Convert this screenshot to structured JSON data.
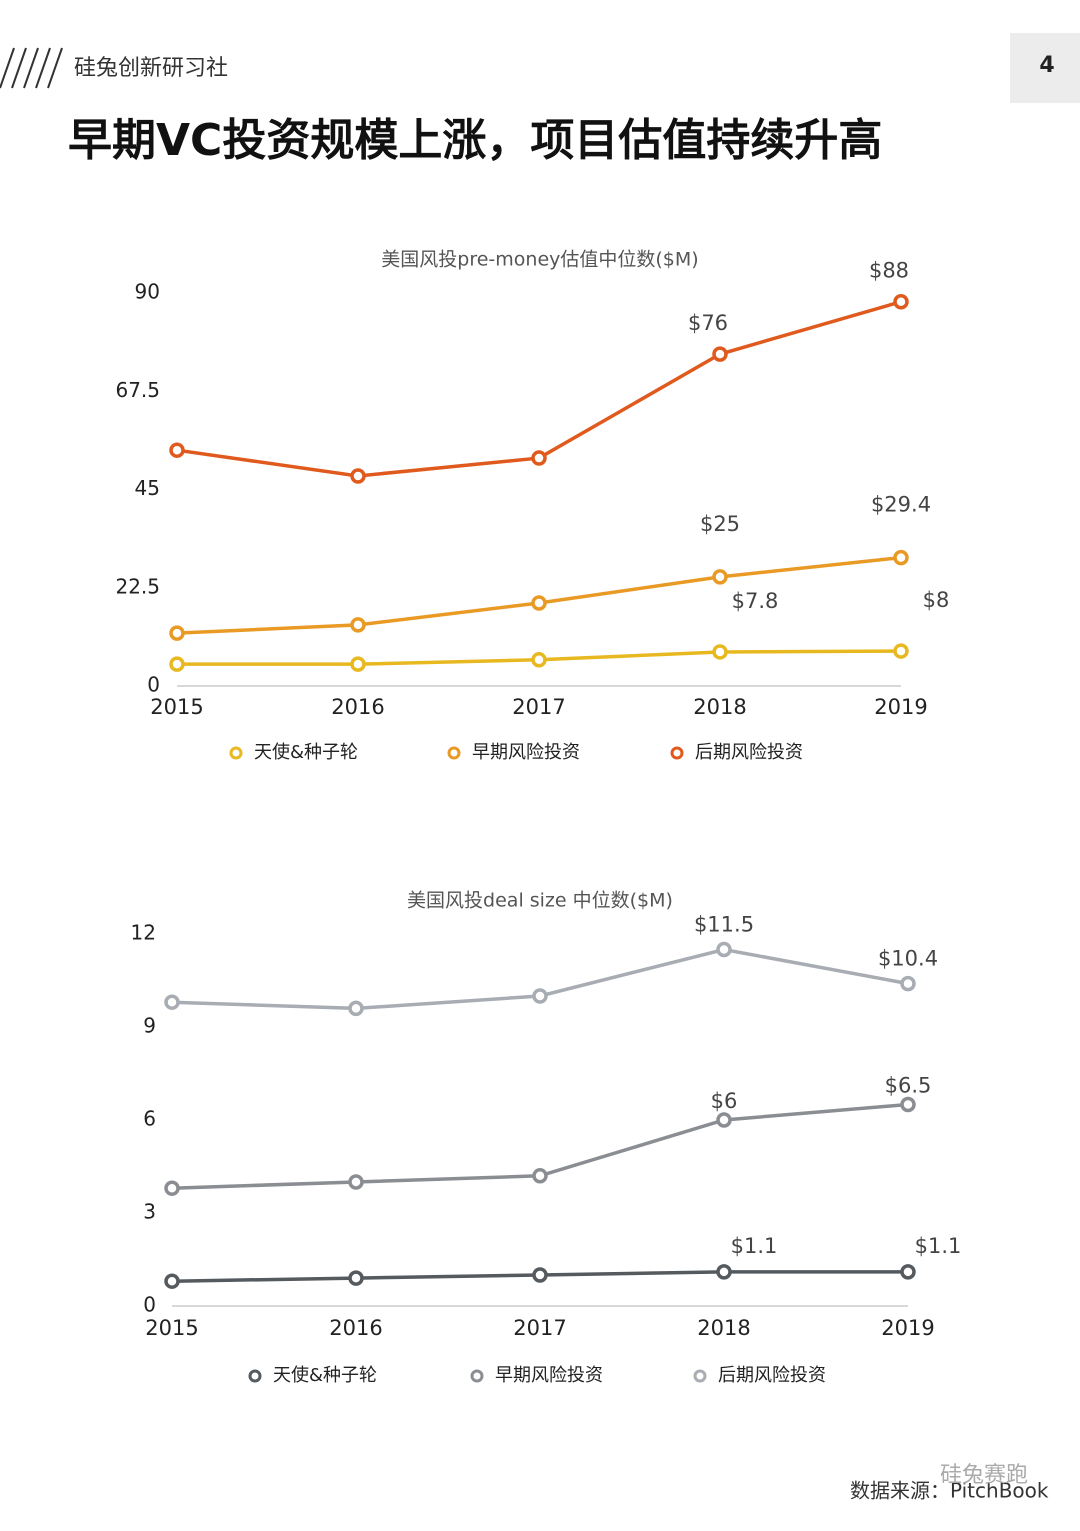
{
  "header": {
    "brand": "硅兔创新研习社",
    "page_number": "4",
    "title": "早期VC投资规模上涨，项目估值持续升高"
  },
  "chart_data": [
    {
      "type": "line",
      "title": "美国风投pre-money估值中位数($M)",
      "categories": [
        "2015",
        "2016",
        "2017",
        "2018",
        "2019"
      ],
      "ylim": [
        0,
        90
      ],
      "yticks": [
        0,
        22.5,
        45,
        67.5,
        90
      ],
      "series": [
        {
          "name": "天使&种子轮",
          "color": "#e8b820",
          "values": [
            5.0,
            5.0,
            6.0,
            7.8,
            8
          ],
          "value_labels": [
            null,
            null,
            null,
            "$7.8",
            "$8"
          ]
        },
        {
          "name": "早期风险投资",
          "color": "#e99a25",
          "values": [
            12.1,
            14.0,
            19.0,
            25,
            29.4
          ],
          "value_labels": [
            null,
            null,
            null,
            "$25",
            "$29.4"
          ]
        },
        {
          "name": "后期风险投资",
          "color": "#e05a1e",
          "values": [
            54.0,
            48.1,
            52.2,
            76,
            88
          ],
          "value_labels": [
            null,
            null,
            null,
            "$76",
            "$88"
          ]
        }
      ]
    },
    {
      "type": "line",
      "title": "美国风投deal size 中位数($M)",
      "categories": [
        "2015",
        "2016",
        "2017",
        "2018",
        "2019"
      ],
      "ylim": [
        0,
        12
      ],
      "yticks": [
        0,
        3,
        6,
        9,
        12
      ],
      "series": [
        {
          "name": "天使&种子轮",
          "color": "#555a5f",
          "values": [
            0.8,
            0.9,
            1.0,
            1.1,
            1.1
          ],
          "value_labels": [
            null,
            null,
            null,
            "$1.1",
            "$1.1"
          ]
        },
        {
          "name": "早期风险投资",
          "color": "#8a8d92",
          "values": [
            3.8,
            4.0,
            4.2,
            6,
            6.5
          ],
          "value_labels": [
            null,
            null,
            null,
            "$6",
            "$6.5"
          ]
        },
        {
          "name": "后期风险投资",
          "color": "#a8acb3",
          "values": [
            9.8,
            9.6,
            10.0,
            11.5,
            10.4
          ],
          "value_labels": [
            null,
            null,
            null,
            "$11.5",
            "$10.4"
          ]
        }
      ]
    }
  ],
  "source": "数据来源：PitchBook",
  "watermark": "硅兔赛跑"
}
